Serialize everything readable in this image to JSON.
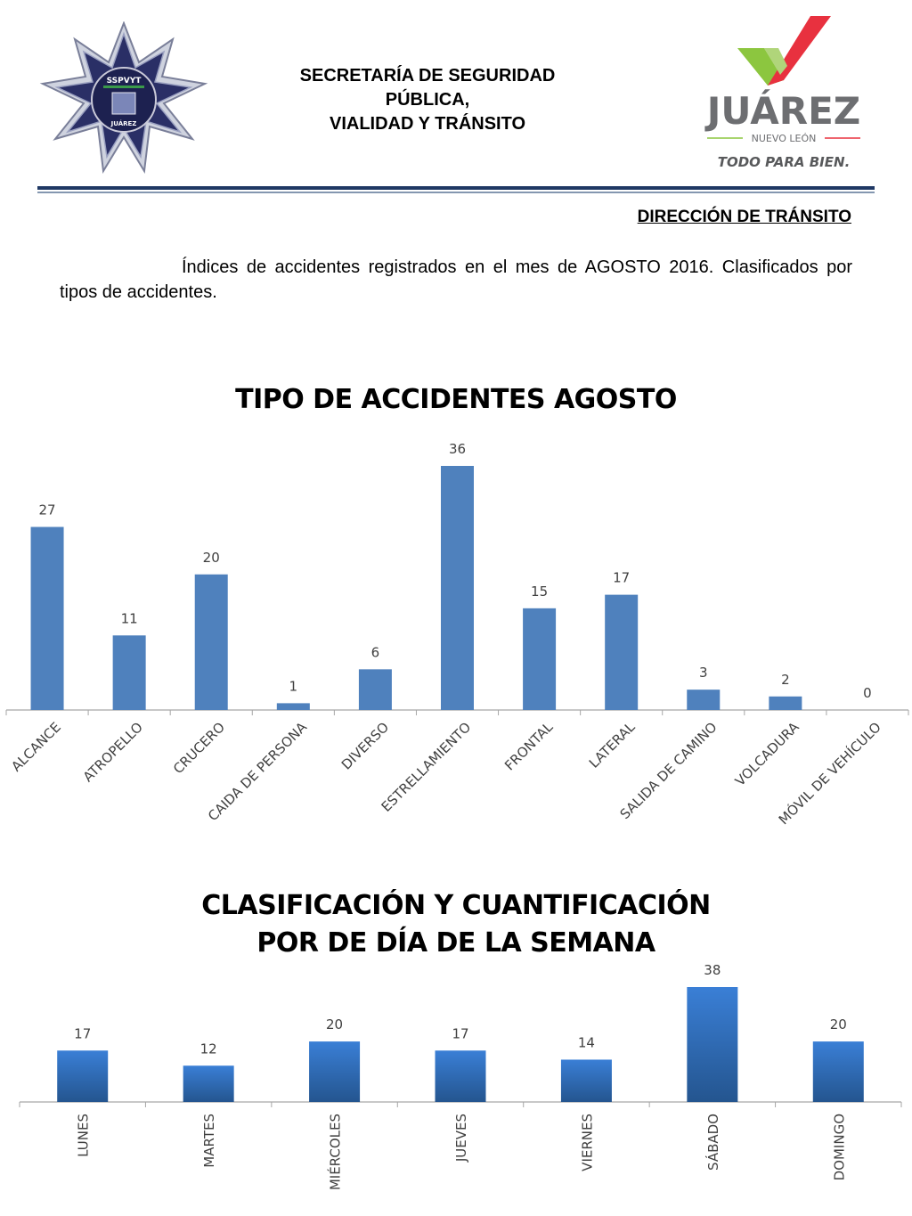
{
  "header": {
    "title_line1": "SECRETARÍA DE SEGURIDAD",
    "title_line2": "PÚBLICA,",
    "title_line3": "VIALIDAD Y TRÁNSITO",
    "badge_text_top": "SSPVYT",
    "badge_text_bottom": "JUÁREZ",
    "logo_text": "JUÁREZ",
    "logo_subtext": "NUEVO LEÓN",
    "logo_slogan": "TODO PARA BIEN."
  },
  "department": "DIRECCIÓN DE TRÁNSITO",
  "intro": "Índices de accidentes registrados en el mes de AGOSTO 2016. Clasificados por tipos de accidentes.",
  "colors": {
    "bar_chart1": "#4f81bd",
    "bar_chart2_top": "#3a7fd6",
    "bar_chart2_bottom": "#24558f",
    "rule": "#1f3864",
    "logo_green": "#8cc63f",
    "logo_red": "#e8313f",
    "logo_gray": "#6d6e71"
  },
  "chart_data": [
    {
      "type": "bar",
      "title": "TIPO DE ACCIDENTES AGOSTO",
      "categories": [
        "ALCANCE",
        "ATROPELLO",
        "CRUCERO",
        "CAIDA DE PERSONA",
        "DIVERSO",
        "ESTRELLAMIENTO",
        "FRONTAL",
        "LATERAL",
        "SALIDA DE CAMINO",
        "VOLCADURA",
        "MÓVIL DE VEHÍCULO"
      ],
      "values": [
        27,
        11,
        20,
        1,
        6,
        36,
        15,
        17,
        3,
        2,
        0
      ],
      "data_labels": [
        "27",
        "11",
        "20",
        "1",
        "6",
        "36",
        "15",
        "17",
        "3",
        "2",
        "0"
      ],
      "ylim": [
        0,
        36
      ],
      "grid": false,
      "legend": "none"
    },
    {
      "type": "bar",
      "title_line1": "CLASIFICACIÓN Y CUANTIFICACIÓN",
      "title_line2": "POR DE DÍA DE LA SEMANA",
      "categories": [
        "LUNES",
        "MARTES",
        "MIÉRCOLES",
        "JUEVES",
        "VIERNES",
        "SÁBADO",
        "DOMINGO"
      ],
      "values": [
        17,
        12,
        20,
        17,
        14,
        38,
        20
      ],
      "data_labels": [
        "17",
        "12",
        "20",
        "17",
        "14",
        "38",
        "20"
      ],
      "ylim": [
        0,
        38
      ],
      "grid": false,
      "legend": "none"
    }
  ]
}
